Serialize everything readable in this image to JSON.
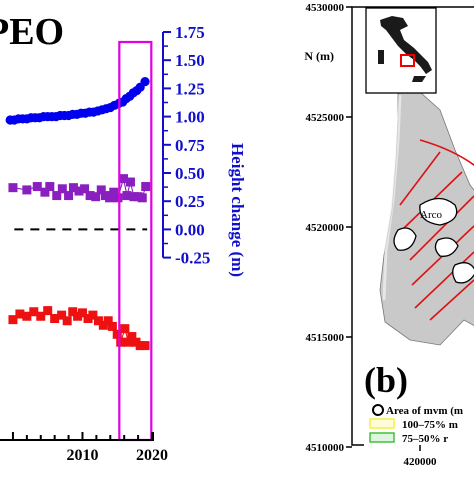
{
  "chart_data": [
    {
      "type": "scatter",
      "title": "PEO",
      "x_tick_labels": [
        "2010",
        "2020"
      ],
      "ylabel_right": "Height change (m)",
      "y_right_ticks": [
        "1.75",
        "1.50",
        "1.25",
        "1.00",
        "0.75",
        "0.50",
        "0.25",
        "0.00",
        "-0.25"
      ],
      "y_right_range": [
        -0.25,
        1.75
      ],
      "x_range": [
        1999,
        2020
      ],
      "highlight_box": {
        "x_from": 2015.3,
        "x_to": 2019.9,
        "color": "#e000e0"
      },
      "zero_line": {
        "y": 0.0,
        "style": "dashed",
        "color": "#000000"
      },
      "colors": {
        "blue": "#0000ee",
        "purple": "#8a1fc0",
        "red": "#ee1111",
        "axis_right": "#1010cc"
      },
      "series": [
        {
          "marker": "circle",
          "color": "#0000ee",
          "connected": true,
          "points": [
            [
              1999.6,
              0.97
            ],
            [
              2000.2,
              0.97
            ],
            [
              2000.8,
              0.98
            ],
            [
              2001.4,
              0.98
            ],
            [
              2002.0,
              0.98
            ],
            [
              2002.6,
              0.99
            ],
            [
              2003.2,
              0.99
            ],
            [
              2003.8,
              0.99
            ],
            [
              2004.4,
              1.0
            ],
            [
              2005.0,
              1.0
            ],
            [
              2005.6,
              1.0
            ],
            [
              2006.2,
              1.0
            ],
            [
              2006.8,
              1.01
            ],
            [
              2007.4,
              1.01
            ],
            [
              2008.0,
              1.01
            ],
            [
              2008.6,
              1.02
            ],
            [
              2009.2,
              1.02
            ],
            [
              2009.8,
              1.03
            ],
            [
              2010.4,
              1.03
            ],
            [
              2011.0,
              1.04
            ],
            [
              2011.6,
              1.04
            ],
            [
              2012.2,
              1.05
            ],
            [
              2012.8,
              1.06
            ],
            [
              2013.4,
              1.07
            ],
            [
              2014.0,
              1.08
            ],
            [
              2014.6,
              1.1
            ],
            [
              2015.3,
              1.12
            ],
            [
              2015.8,
              1.13
            ],
            [
              2016.3,
              1.16
            ],
            [
              2016.8,
              1.18
            ],
            [
              2017.3,
              1.21
            ],
            [
              2017.8,
              1.23
            ],
            [
              2018.3,
              1.26
            ],
            [
              2019.0,
              1.31
            ]
          ]
        },
        {
          "marker": "square",
          "color": "#8a1fc0",
          "connected": true,
          "points": [
            [
              2000.0,
              0.37
            ],
            [
              2002.0,
              0.35
            ],
            [
              2003.5,
              0.38
            ],
            [
              2004.6,
              0.33
            ],
            [
              2005.3,
              0.38
            ],
            [
              2006.3,
              0.3
            ],
            [
              2007.1,
              0.36
            ],
            [
              2008.0,
              0.3
            ],
            [
              2008.7,
              0.37
            ],
            [
              2009.5,
              0.34
            ],
            [
              2010.3,
              0.36
            ],
            [
              2011.1,
              0.3
            ],
            [
              2011.9,
              0.29
            ],
            [
              2012.7,
              0.35
            ],
            [
              2013.3,
              0.3
            ],
            [
              2013.9,
              0.28
            ],
            [
              2014.5,
              0.33
            ],
            [
              2015.1,
              0.28
            ],
            [
              2015.9,
              0.45
            ],
            [
              2016.4,
              0.3
            ],
            [
              2016.9,
              0.42
            ],
            [
              2017.4,
              0.29
            ],
            [
              2018.0,
              0.29
            ],
            [
              2018.6,
              0.28
            ],
            [
              2019.1,
              0.38
            ]
          ]
        },
        {
          "marker": "square",
          "color": "#ee1111",
          "connected": true,
          "points": [
            [
              2000.0,
              -0.8
            ],
            [
              2001.0,
              -0.75
            ],
            [
              2002.0,
              -0.77
            ],
            [
              2003.0,
              -0.73
            ],
            [
              2004.0,
              -0.77
            ],
            [
              2005.0,
              -0.72
            ],
            [
              2006.0,
              -0.79
            ],
            [
              2007.0,
              -0.76
            ],
            [
              2007.8,
              -0.81
            ],
            [
              2008.6,
              -0.73
            ],
            [
              2009.3,
              -0.77
            ],
            [
              2010.0,
              -0.74
            ],
            [
              2010.8,
              -0.79
            ],
            [
              2011.5,
              -0.76
            ],
            [
              2012.3,
              -0.81
            ],
            [
              2013.0,
              -0.85
            ],
            [
              2013.7,
              -0.81
            ],
            [
              2014.3,
              -0.86
            ],
            [
              2015.0,
              -0.93
            ],
            [
              2015.5,
              -1.0
            ],
            [
              2016.1,
              -0.88
            ],
            [
              2016.6,
              -1.0
            ],
            [
              2017.1,
              -0.95
            ],
            [
              2017.7,
              -1.0
            ],
            [
              2018.3,
              -1.03
            ],
            [
              2019.0,
              -1.03
            ]
          ]
        }
      ]
    },
    {
      "type": "map",
      "ylabel": "N (m)",
      "y_tick_labels": [
        "4530000",
        "4525000",
        "4520000",
        "4515000",
        "4510000"
      ],
      "x_tick_labels": [
        "420000"
      ],
      "panel_label": "(b)",
      "place_label": "Arco",
      "legend": [
        {
          "label": "Area of mvm (m",
          "symbol": "circle-outline"
        },
        {
          "label": "100–75% m",
          "symbol": "yellow-hatch"
        },
        {
          "label": "75–50% r",
          "symbol": "green-hatch"
        }
      ],
      "colors": {
        "yellow": "#f4ee30",
        "green": "#22bb22",
        "red_lines": "#dd1111",
        "land": "#c8c8c8"
      }
    }
  ]
}
